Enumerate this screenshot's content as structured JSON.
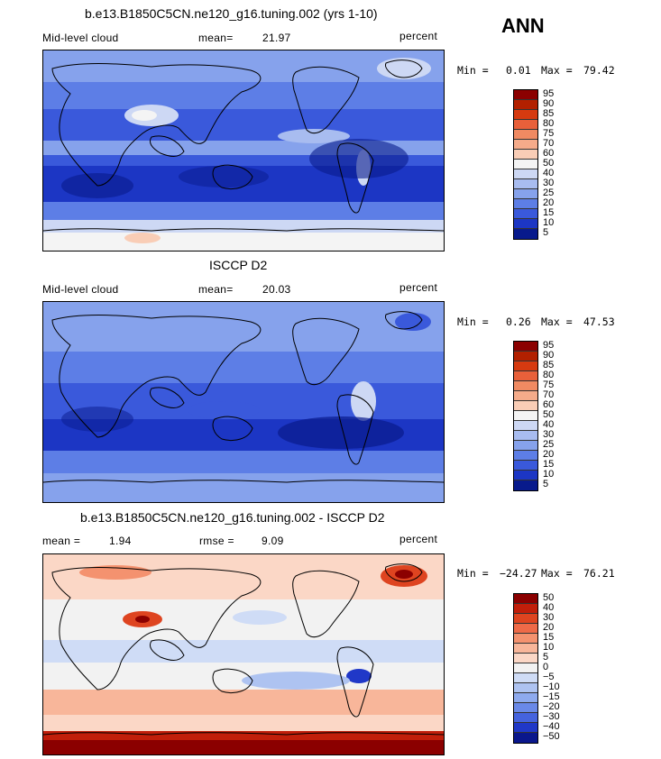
{
  "season": "ANN",
  "panels": [
    {
      "id": "model",
      "title": "b.e13.B1850C5CN.ne120_g16.tuning.002 (yrs 1-10)",
      "left_label": "Mid-level cloud",
      "stat_label": "mean=",
      "stat_value": "21.97",
      "units": "percent",
      "min_label": "Min =",
      "min_value": "0.01",
      "max_label": "Max =",
      "max_value": "79.42",
      "colorbar_levels": [
        "95",
        "90",
        "85",
        "80",
        "75",
        "70",
        "60",
        "50",
        "40",
        "30",
        "25",
        "20",
        "15",
        "10",
        "5"
      ]
    },
    {
      "id": "obs",
      "title": "ISCCP D2",
      "left_label": "Mid-level cloud",
      "stat_label": "mean=",
      "stat_value": "20.03",
      "units": "percent",
      "min_label": "Min =",
      "min_value": "0.26",
      "max_label": "Max =",
      "max_value": "47.53",
      "colorbar_levels": [
        "95",
        "90",
        "85",
        "80",
        "75",
        "70",
        "60",
        "50",
        "40",
        "30",
        "25",
        "20",
        "15",
        "10",
        "5"
      ]
    },
    {
      "id": "diff",
      "title": "b.e13.B1850C5CN.ne120_g16.tuning.002 - ISCCP D2",
      "left_label": "mean =",
      "left_value": "1.94",
      "stat_label": "rmse =",
      "stat_value": "9.09",
      "units": "percent",
      "min_label": "Min =",
      "min_value": "−24.27",
      "max_label": "Max =",
      "max_value": "76.21",
      "colorbar_levels": [
        "50",
        "40",
        "30",
        "20",
        "15",
        "10",
        "5",
        "0",
        "−5",
        "−10",
        "−15",
        "−20",
        "−30",
        "−40",
        "−50"
      ]
    }
  ],
  "colors": {
    "seq": [
      "#8b0000",
      "#b22000",
      "#d63a10",
      "#e8603a",
      "#f08a62",
      "#f5ab8a",
      "#f9cdb6",
      "#f4f4f4",
      "#cdd8f4",
      "#a8bcf0",
      "#86a2ec",
      "#5d7ee6",
      "#3a59db",
      "#1c36c4",
      "#081a8c"
    ],
    "div": [
      "#8b0000",
      "#c11e0a",
      "#de4420",
      "#ee6a48",
      "#f4926f",
      "#f8b69a",
      "#fbd7c6",
      "#f2f2f2",
      "#cfdcf6",
      "#aec3f1",
      "#8eaaee",
      "#6a89e8",
      "#4563de",
      "#2038c8",
      "#0a178c"
    ]
  }
}
